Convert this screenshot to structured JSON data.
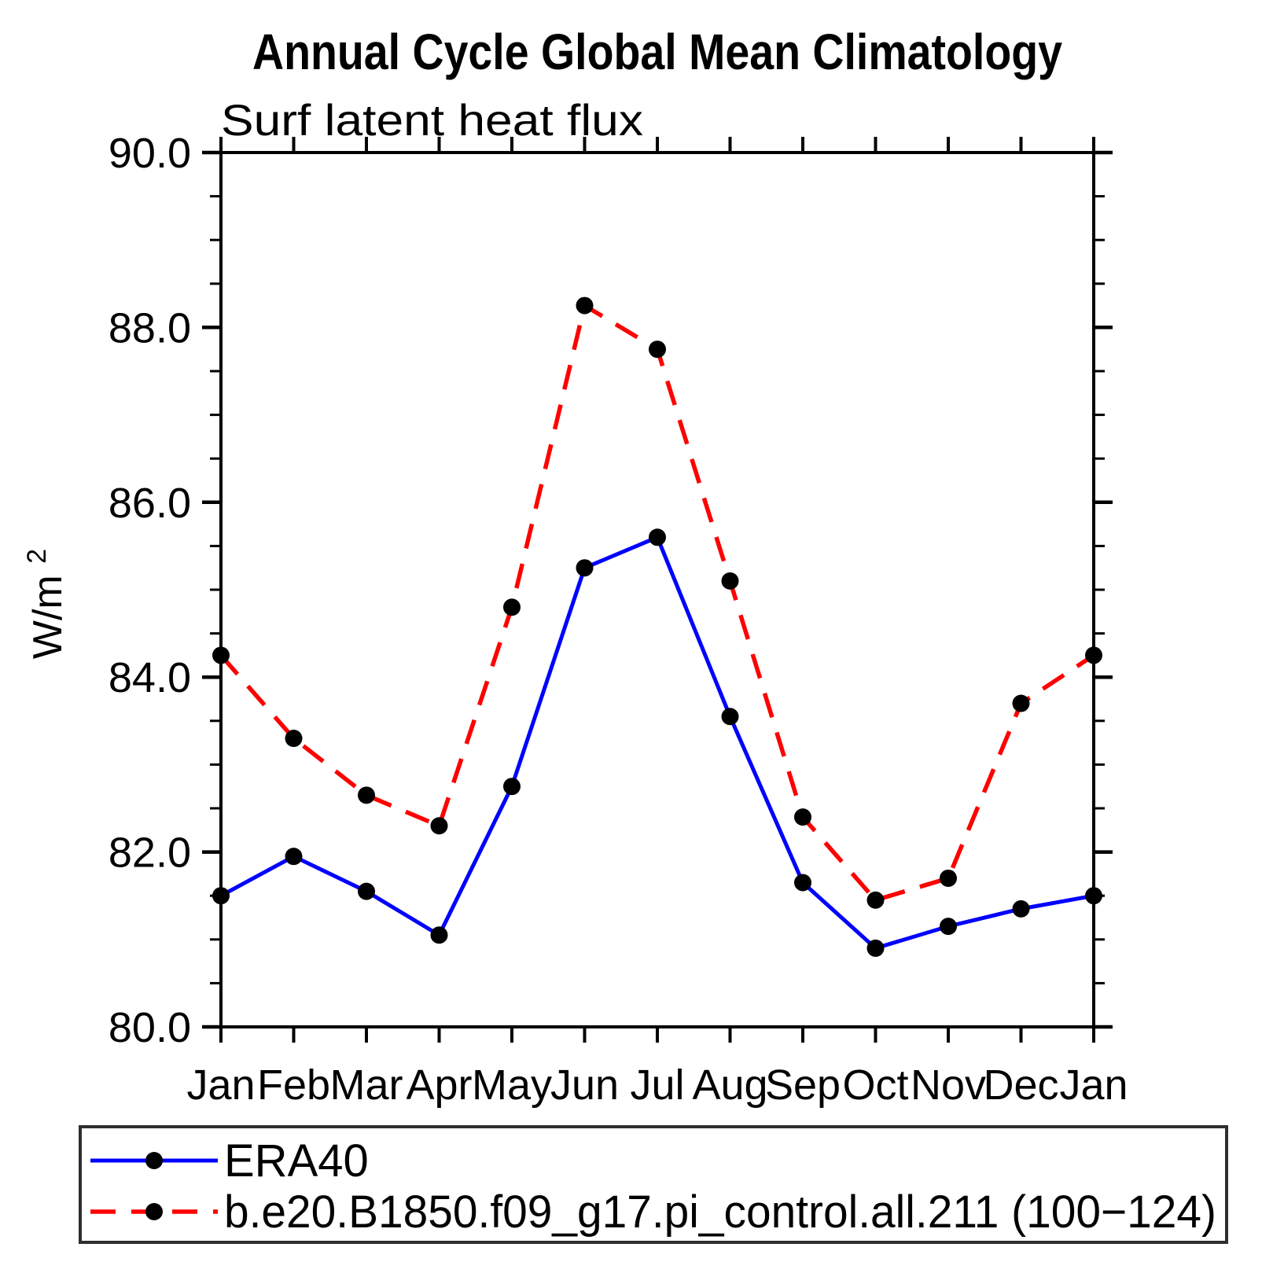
{
  "title": "Annual Cycle Global Mean Climatology",
  "subtitle": "Surf latent heat flux",
  "ylabel": {
    "base": "W/m",
    "exp": "2"
  },
  "chart_data": {
    "type": "line",
    "title": "Annual Cycle Global Mean Climatology",
    "subtitle": "Surf latent heat flux",
    "ylabel": "W/m^2",
    "categories": [
      "Jan",
      "Feb",
      "Mar",
      "Apr",
      "May",
      "Jun",
      "Jul",
      "Aug",
      "Sep",
      "Oct",
      "Nov",
      "Dec",
      "Jan"
    ],
    "ylim": [
      80.0,
      90.0
    ],
    "ytick_major_step": 2.0,
    "ytick_minor_step": 0.5,
    "ytick_labels": [
      "80.0",
      "82.0",
      "84.0",
      "86.0",
      "88.0",
      "90.0"
    ],
    "grid": false,
    "legend_position": "bottom-box",
    "series": [
      {
        "id": "era40",
        "name": "ERA40",
        "color": "#0000ff",
        "line_style": "solid",
        "marker": "circle",
        "marker_color": "#000000",
        "values": [
          81.5,
          81.95,
          81.55,
          81.05,
          82.75,
          85.25,
          85.6,
          83.55,
          81.65,
          80.9,
          81.15,
          81.35,
          81.5
        ]
      },
      {
        "id": "model",
        "name": "b.e20.B1850.f09_g17.pi_control.all.211 (100−124)",
        "color": "#ff0000",
        "line_style": "dashed",
        "marker": "circle",
        "marker_color": "#000000",
        "values": [
          84.25,
          83.3,
          82.65,
          82.3,
          84.8,
          88.25,
          87.75,
          85.1,
          82.4,
          81.45,
          81.7,
          83.7,
          84.25
        ]
      }
    ]
  }
}
